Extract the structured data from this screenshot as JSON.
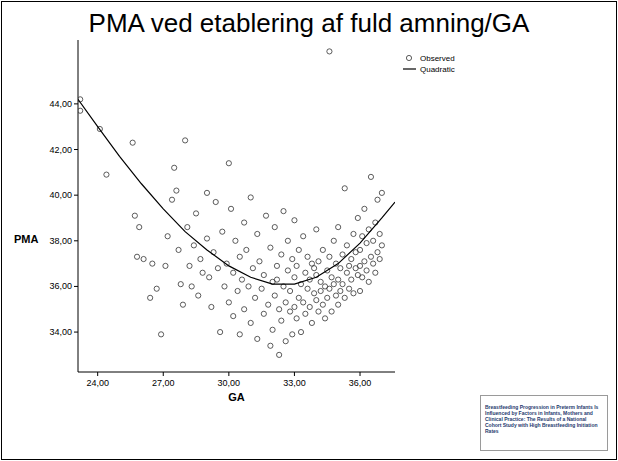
{
  "chart_data": {
    "type": "scatter",
    "title": "PMA ved etablering af fuld amning/GA",
    "x_label": "GA",
    "y_label": "PMA",
    "thumbnail_text": "Breastfeeding Progression in Preterm Infants Is Influenced by Factors in Infants, Mothers and Clinical Practice: The Results of a National Cohort Study with High Breastfeeding Initiation Rates",
    "xlim": [
      23.1,
      37.6
    ],
    "ylim": [
      32.25,
      46.8
    ],
    "xticks": [
      {
        "value": 24,
        "label": "24,00"
      },
      {
        "value": 27,
        "label": "27,00"
      },
      {
        "value": 30,
        "label": "30,00"
      },
      {
        "value": 33,
        "label": "33,00"
      },
      {
        "value": 36,
        "label": "36,00"
      }
    ],
    "yticks": [
      {
        "value": 34,
        "label": "34,00"
      },
      {
        "value": 36,
        "label": "36,00"
      },
      {
        "value": 38,
        "label": "38,00"
      },
      {
        "value": 40,
        "label": "40,00"
      },
      {
        "value": 42,
        "label": "42,00"
      },
      {
        "value": 44,
        "label": "44,00"
      }
    ],
    "grid": false,
    "legend": "top-right",
    "series": [
      {
        "name": "Observed",
        "type": "scatter",
        "marker": "circle",
        "color": "#333333",
        "x": [
          23.2,
          23.2,
          24.1,
          24.4,
          25.6,
          25.7,
          25.9,
          25.8,
          26.1,
          26.4,
          26.5,
          26.7,
          26.9,
          27.1,
          27.2,
          27.4,
          27.5,
          27.6,
          27.7,
          27.8,
          27.9,
          28.0,
          28.1,
          28.2,
          28.3,
          28.4,
          28.5,
          28.6,
          28.7,
          28.8,
          29.0,
          29.0,
          29.1,
          29.2,
          29.3,
          29.4,
          29.5,
          29.6,
          29.7,
          29.8,
          29.9,
          30.0,
          30.0,
          30.1,
          30.2,
          30.2,
          30.3,
          30.4,
          30.5,
          30.5,
          30.6,
          30.7,
          30.7,
          30.8,
          30.9,
          31.0,
          31.0,
          31.1,
          31.2,
          31.3,
          31.3,
          31.4,
          31.5,
          31.6,
          31.6,
          31.7,
          31.8,
          31.9,
          31.9,
          32.0,
          32.0,
          32.1,
          32.1,
          32.2,
          32.2,
          32.3,
          32.3,
          32.4,
          32.4,
          32.5,
          32.5,
          32.6,
          32.6,
          32.7,
          32.7,
          32.8,
          32.8,
          32.9,
          32.9,
          33.0,
          33.0,
          33.0,
          33.1,
          33.1,
          33.2,
          33.2,
          33.3,
          33.3,
          33.4,
          33.4,
          33.5,
          33.5,
          33.6,
          33.6,
          33.7,
          33.7,
          33.8,
          33.8,
          33.9,
          33.9,
          34.0,
          34.0,
          34.0,
          34.1,
          34.1,
          34.2,
          34.2,
          34.3,
          34.3,
          34.4,
          34.4,
          34.5,
          34.5,
          34.6,
          34.6,
          34.6,
          34.7,
          34.7,
          34.8,
          34.8,
          34.9,
          34.9,
          35.0,
          35.0,
          35.0,
          35.1,
          35.1,
          35.2,
          35.2,
          35.3,
          35.3,
          35.4,
          35.4,
          35.5,
          35.5,
          35.6,
          35.6,
          35.7,
          35.7,
          35.8,
          35.8,
          35.9,
          35.9,
          36.0,
          36.0,
          36.0,
          36.1,
          36.1,
          36.2,
          36.2,
          36.3,
          36.3,
          36.4,
          36.4,
          36.5,
          36.5,
          36.6,
          36.6,
          36.7,
          36.7,
          36.8,
          36.8,
          36.9,
          36.9,
          37.0,
          37.0
        ],
        "values": [
          44.2,
          43.7,
          42.9,
          40.9,
          42.3,
          39.1,
          38.6,
          37.3,
          37.2,
          35.5,
          37.0,
          35.9,
          33.9,
          36.9,
          38.2,
          39.8,
          41.2,
          40.2,
          37.6,
          36.1,
          35.2,
          42.4,
          38.6,
          36.9,
          36.0,
          37.8,
          39.2,
          35.6,
          37.2,
          36.6,
          38.1,
          40.1,
          36.4,
          35.1,
          37.5,
          39.7,
          36.8,
          34.0,
          38.4,
          36.0,
          37.0,
          41.4,
          35.3,
          39.4,
          36.6,
          34.7,
          38.0,
          35.8,
          37.3,
          33.9,
          36.3,
          38.8,
          35.0,
          37.6,
          36.0,
          39.9,
          34.4,
          36.8,
          35.5,
          38.3,
          33.7,
          37.1,
          35.9,
          36.5,
          34.8,
          39.1,
          35.2,
          37.7,
          33.4,
          36.2,
          34.1,
          38.6,
          35.6,
          36.3,
          36.9,
          33.0,
          35.0,
          37.4,
          34.5,
          36.0,
          39.3,
          35.3,
          33.6,
          36.7,
          38.0,
          34.9,
          35.8,
          37.2,
          33.9,
          36.4,
          35.1,
          38.9,
          34.6,
          36.9,
          35.5,
          37.6,
          34.0,
          36.1,
          35.3,
          38.2,
          36.6,
          34.8,
          35.9,
          37.3,
          35.1,
          36.3,
          34.4,
          37.0,
          35.7,
          36.8,
          35.4,
          36.5,
          38.5,
          34.9,
          37.1,
          35.8,
          36.2,
          35.2,
          37.6,
          36.0,
          34.6,
          36.7,
          35.5,
          37.3,
          35.9,
          46.3,
          36.4,
          34.9,
          38.0,
          36.1,
          35.6,
          37.0,
          36.3,
          35.2,
          38.6,
          36.8,
          35.8,
          37.4,
          36.1,
          35.5,
          40.3,
          36.6,
          37.8,
          35.9,
          36.9,
          37.2,
          36.3,
          35.7,
          38.3,
          36.8,
          37.5,
          36.5,
          39.0,
          36.9,
          37.6,
          35.8,
          38.2,
          36.4,
          37.1,
          39.4,
          36.7,
          37.9,
          36.2,
          38.5,
          37.3,
          40.8,
          37.0,
          38.0,
          36.6,
          38.8,
          37.5,
          39.8,
          37.2,
          38.3,
          40.1,
          37.8
        ]
      },
      {
        "name": "Quadratic",
        "type": "line",
        "line_style": "solid",
        "color": "#000000",
        "x": [
          23.1,
          24,
          25,
          26,
          27,
          28,
          29,
          30,
          31,
          32,
          33,
          34,
          35,
          36,
          37,
          37.6
        ],
        "values": [
          44.2,
          43.0,
          41.7,
          40.5,
          39.4,
          38.4,
          37.6,
          36.9,
          36.4,
          36.1,
          36.1,
          36.4,
          37.0,
          37.9,
          39.0,
          39.7
        ]
      }
    ]
  }
}
